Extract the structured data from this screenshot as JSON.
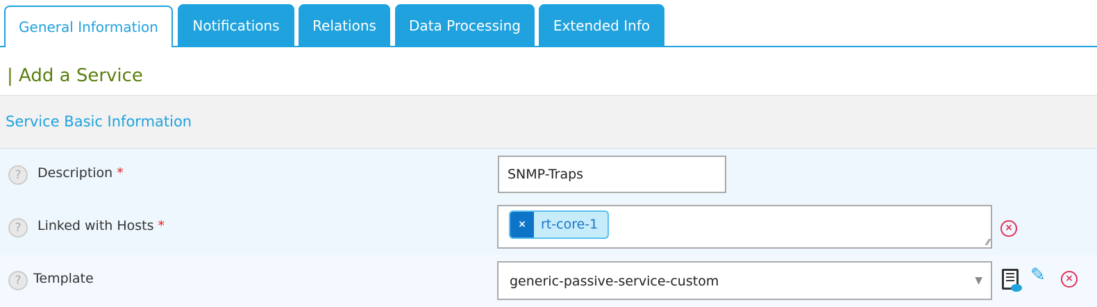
{
  "tabs": [
    {
      "label": "General Information",
      "active": true
    },
    {
      "label": "Notifications"
    },
    {
      "label": "Relations"
    },
    {
      "label": "Data Processing"
    },
    {
      "label": "Extended Info"
    }
  ],
  "page_title": "Add a Service",
  "section_title": "Service Basic Information",
  "fields": {
    "description": {
      "label": "Description",
      "required": "*",
      "value": "SNMP-Traps"
    },
    "hosts": {
      "label": "Linked with Hosts",
      "required": "*",
      "tags": [
        "rt-core-1"
      ]
    },
    "template": {
      "label": "Template",
      "value": "generic-passive-service-custom"
    }
  },
  "help_glyph": "?",
  "colors": {
    "accent": "#1fa2dd",
    "title": "#5a7f0e",
    "remove": "#e0305a"
  }
}
